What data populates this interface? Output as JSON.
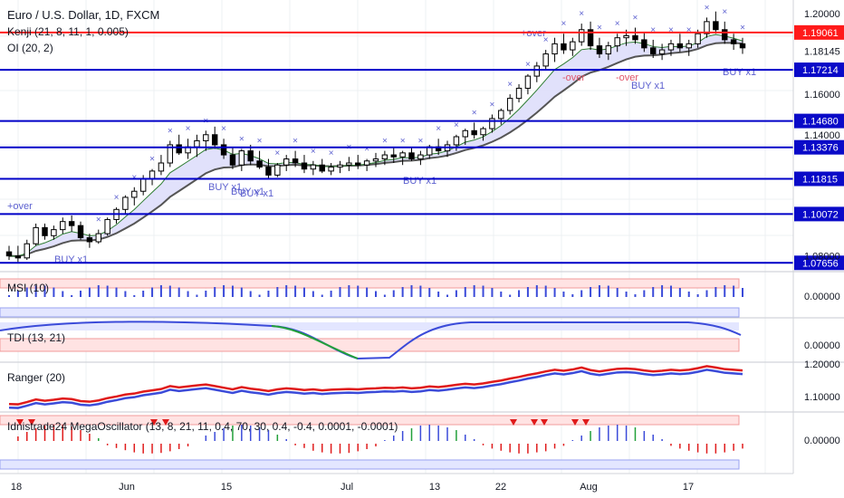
{
  "header": {
    "title": "Euro / U.S. Dollar, 1D, FXCM",
    "indicator1": "Kenji (21, 8, 11, 1, 0.005)",
    "indicator2": "OI (20, 2)"
  },
  "colors": {
    "grid": "#eef0f3",
    "up": "#ffffff",
    "down": "#000000",
    "wick": "#000000",
    "level_line": "#0000c8",
    "resistance_line": "#ff1f1f",
    "label_blue": "#0a0ac8",
    "label_red": "#ff1a1a",
    "signal_text": "#5b5fcf",
    "sell_text": "#e0566a",
    "cloud_green": "#d9f3da",
    "cloud_blue": "#dcdcfa",
    "slow_line": "#555555",
    "fast_line": "#2e7d32",
    "pane_band_red": "#ffe3e3",
    "pane_band_blue": "#e3e6ff",
    "osc_blue": "#3b4bd9",
    "osc_green": "#22a03a",
    "osc_red": "#e01b1b"
  },
  "price_axis": {
    "ticks": [
      "1.20000",
      "1.18145",
      "1.16000",
      "1.14000",
      "1.08000"
    ],
    "level_labels": [
      "1.19061",
      "1.17214",
      "1.14680",
      "1.13376",
      "1.11815",
      "1.10072",
      "1.07656"
    ]
  },
  "time_axis": {
    "labels": [
      "18",
      "Jun",
      "15",
      "Jul",
      "13",
      "22",
      "Aug",
      "17"
    ]
  },
  "signal_labels": {
    "buy": [
      "BUY x1",
      "BUY x1",
      "BUY x1",
      "BUY x1",
      "BUY x1",
      "BUY x1",
      "BUY x1"
    ],
    "over": [
      "+over",
      "+over"
    ],
    "sell_over": [
      "-over",
      "-over"
    ],
    "buy_cluster": "BUY x1"
  },
  "panes": [
    {
      "name": "MSI (10)",
      "axis_label": "0.00000"
    },
    {
      "name": "TDI (13, 21)",
      "axis_label": "0.00000"
    },
    {
      "name": "Ranger (20)",
      "axis_labels": [
        "1.20000",
        "1.10000"
      ]
    },
    {
      "name": "Idnistrade24 MegaOscillator (13, 8, 21, 11, 0.4, 70, 30, 0.4, -0.4, 0.0001, -0.0001)",
      "axis_label": "0.00000"
    }
  ],
  "chart_data": {
    "type": "candlestick",
    "series": [
      {
        "name": "EURUSD",
        "ohlc": [
          [
            1.082,
            1.085,
            1.078,
            1.08
          ],
          [
            1.08,
            1.085,
            1.077,
            1.079
          ],
          [
            1.079,
            1.088,
            1.078,
            1.086
          ],
          [
            1.086,
            1.096,
            1.085,
            1.094
          ],
          [
            1.094,
            1.096,
            1.088,
            1.09
          ],
          [
            1.09,
            1.095,
            1.088,
            1.093
          ],
          [
            1.093,
            1.099,
            1.091,
            1.097
          ],
          [
            1.097,
            1.1,
            1.092,
            1.095
          ],
          [
            1.095,
            1.097,
            1.088,
            1.089
          ],
          [
            1.089,
            1.091,
            1.084,
            1.087
          ],
          [
            1.087,
            1.093,
            1.086,
            1.091
          ],
          [
            1.091,
            1.099,
            1.09,
            1.098
          ],
          [
            1.098,
            1.104,
            1.096,
            1.103
          ],
          [
            1.103,
            1.11,
            1.101,
            1.109
          ],
          [
            1.109,
            1.114,
            1.105,
            1.112
          ],
          [
            1.112,
            1.12,
            1.11,
            1.118
          ],
          [
            1.118,
            1.123,
            1.115,
            1.122
          ],
          [
            1.122,
            1.13,
            1.12,
            1.126
          ],
          [
            1.126,
            1.137,
            1.124,
            1.135
          ],
          [
            1.135,
            1.14,
            1.13,
            1.131
          ],
          [
            1.131,
            1.138,
            1.128,
            1.134
          ],
          [
            1.134,
            1.14,
            1.129,
            1.137
          ],
          [
            1.137,
            1.142,
            1.132,
            1.14
          ],
          [
            1.14,
            1.144,
            1.133,
            1.135
          ],
          [
            1.135,
            1.138,
            1.128,
            1.13
          ],
          [
            1.13,
            1.134,
            1.123,
            1.125
          ],
          [
            1.125,
            1.133,
            1.122,
            1.132
          ],
          [
            1.132,
            1.135,
            1.125,
            1.127
          ],
          [
            1.127,
            1.132,
            1.123,
            1.124
          ],
          [
            1.124,
            1.128,
            1.118,
            1.12
          ],
          [
            1.12,
            1.126,
            1.119,
            1.125
          ],
          [
            1.125,
            1.13,
            1.122,
            1.128
          ],
          [
            1.128,
            1.132,
            1.124,
            1.126
          ],
          [
            1.126,
            1.13,
            1.121,
            1.123
          ],
          [
            1.123,
            1.127,
            1.12,
            1.125
          ],
          [
            1.125,
            1.128,
            1.121,
            1.122
          ],
          [
            1.122,
            1.126,
            1.12,
            1.124
          ],
          [
            1.124,
            1.127,
            1.121,
            1.125
          ],
          [
            1.125,
            1.129,
            1.122,
            1.126
          ],
          [
            1.126,
            1.13,
            1.123,
            1.125
          ],
          [
            1.125,
            1.128,
            1.122,
            1.127
          ],
          [
            1.127,
            1.131,
            1.124,
            1.128
          ],
          [
            1.128,
            1.132,
            1.125,
            1.13
          ],
          [
            1.13,
            1.134,
            1.126,
            1.129
          ],
          [
            1.129,
            1.132,
            1.125,
            1.131
          ],
          [
            1.131,
            1.134,
            1.127,
            1.128
          ],
          [
            1.128,
            1.132,
            1.125,
            1.13
          ],
          [
            1.13,
            1.135,
            1.128,
            1.134
          ],
          [
            1.134,
            1.138,
            1.13,
            1.132
          ],
          [
            1.132,
            1.137,
            1.129,
            1.135
          ],
          [
            1.135,
            1.14,
            1.132,
            1.139
          ],
          [
            1.139,
            1.143,
            1.135,
            1.142
          ],
          [
            1.142,
            1.146,
            1.138,
            1.14
          ],
          [
            1.14,
            1.144,
            1.137,
            1.143
          ],
          [
            1.143,
            1.15,
            1.141,
            1.148
          ],
          [
            1.148,
            1.153,
            1.145,
            1.152
          ],
          [
            1.152,
            1.16,
            1.15,
            1.158
          ],
          [
            1.158,
            1.165,
            1.156,
            1.163
          ],
          [
            1.163,
            1.17,
            1.16,
            1.169
          ],
          [
            1.169,
            1.176,
            1.166,
            1.174
          ],
          [
            1.174,
            1.182,
            1.172,
            1.18
          ],
          [
            1.18,
            1.188,
            1.176,
            1.185
          ],
          [
            1.185,
            1.19,
            1.18,
            1.182
          ],
          [
            1.182,
            1.188,
            1.179,
            1.186
          ],
          [
            1.186,
            1.195,
            1.184,
            1.192
          ],
          [
            1.192,
            1.196,
            1.182,
            1.184
          ],
          [
            1.184,
            1.188,
            1.178,
            1.18
          ],
          [
            1.18,
            1.186,
            1.177,
            1.184
          ],
          [
            1.184,
            1.19,
            1.181,
            1.188
          ],
          [
            1.188,
            1.192,
            1.184,
            1.189
          ],
          [
            1.189,
            1.193,
            1.185,
            1.187
          ],
          [
            1.187,
            1.191,
            1.181,
            1.183
          ],
          [
            1.183,
            1.187,
            1.178,
            1.18
          ],
          [
            1.18,
            1.185,
            1.177,
            1.182
          ],
          [
            1.182,
            1.187,
            1.179,
            1.185
          ],
          [
            1.185,
            1.19,
            1.181,
            1.183
          ],
          [
            1.183,
            1.187,
            1.179,
            1.185
          ],
          [
            1.185,
            1.192,
            1.183,
            1.19
          ],
          [
            1.19,
            1.198,
            1.188,
            1.196
          ],
          [
            1.196,
            1.201,
            1.19,
            1.192
          ],
          [
            1.192,
            1.196,
            1.185,
            1.187
          ],
          [
            1.187,
            1.19,
            1.182,
            1.185
          ],
          [
            1.185,
            1.188,
            1.18,
            1.183
          ]
        ]
      }
    ],
    "levels": [
      1.19061,
      1.17214,
      1.1468,
      1.13376,
      1.11815,
      1.10072,
      1.07656
    ],
    "ylim": [
      1.074,
      1.204
    ],
    "x_labels": [
      "18",
      "Jun",
      "15",
      "Jul",
      "13",
      "22",
      "Aug",
      "17"
    ],
    "grid": true,
    "legend": "top-left"
  }
}
